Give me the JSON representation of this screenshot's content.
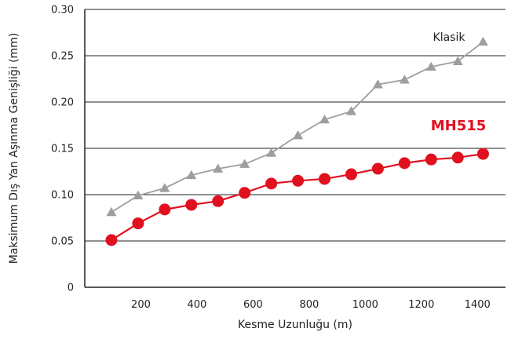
{
  "chart_data": {
    "type": "line",
    "xlabel": "Kesme Uzunluğu (m)",
    "ylabel": "Maksimum Dış Yan Aşınma Genişliği (mm)",
    "xlim": [
      0,
      1500
    ],
    "ylim": [
      0,
      0.3
    ],
    "x_ticks": [
      200,
      400,
      600,
      800,
      1000,
      1200,
      1400
    ],
    "y_ticks": [
      0,
      0.05,
      0.1,
      0.15,
      0.2,
      0.25,
      0.3
    ],
    "y_tick_labels": [
      "0",
      "0.05",
      "0.10",
      "0.15",
      "0.20",
      "0.25",
      "0.30"
    ],
    "grid": "horizontal",
    "series": [
      {
        "name": "Klasik",
        "color": "#9e9e9e",
        "marker": "triangle",
        "x": [
          95,
          190,
          285,
          380,
          475,
          570,
          665,
          760,
          855,
          950,
          1045,
          1140,
          1235,
          1330,
          1420
        ],
        "y": [
          0.081,
          0.099,
          0.107,
          0.121,
          0.128,
          0.133,
          0.145,
          0.164,
          0.181,
          0.19,
          0.219,
          0.224,
          0.238,
          0.244,
          0.265
        ]
      },
      {
        "name": "MH515",
        "color": "#e0101f",
        "marker": "circle",
        "x": [
          95,
          190,
          285,
          380,
          475,
          570,
          665,
          760,
          855,
          950,
          1045,
          1140,
          1235,
          1330,
          1420
        ],
        "y": [
          0.051,
          0.069,
          0.084,
          0.089,
          0.093,
          0.102,
          0.112,
          0.115,
          0.117,
          0.122,
          0.128,
          0.134,
          0.138,
          0.14,
          0.144
        ]
      }
    ]
  }
}
